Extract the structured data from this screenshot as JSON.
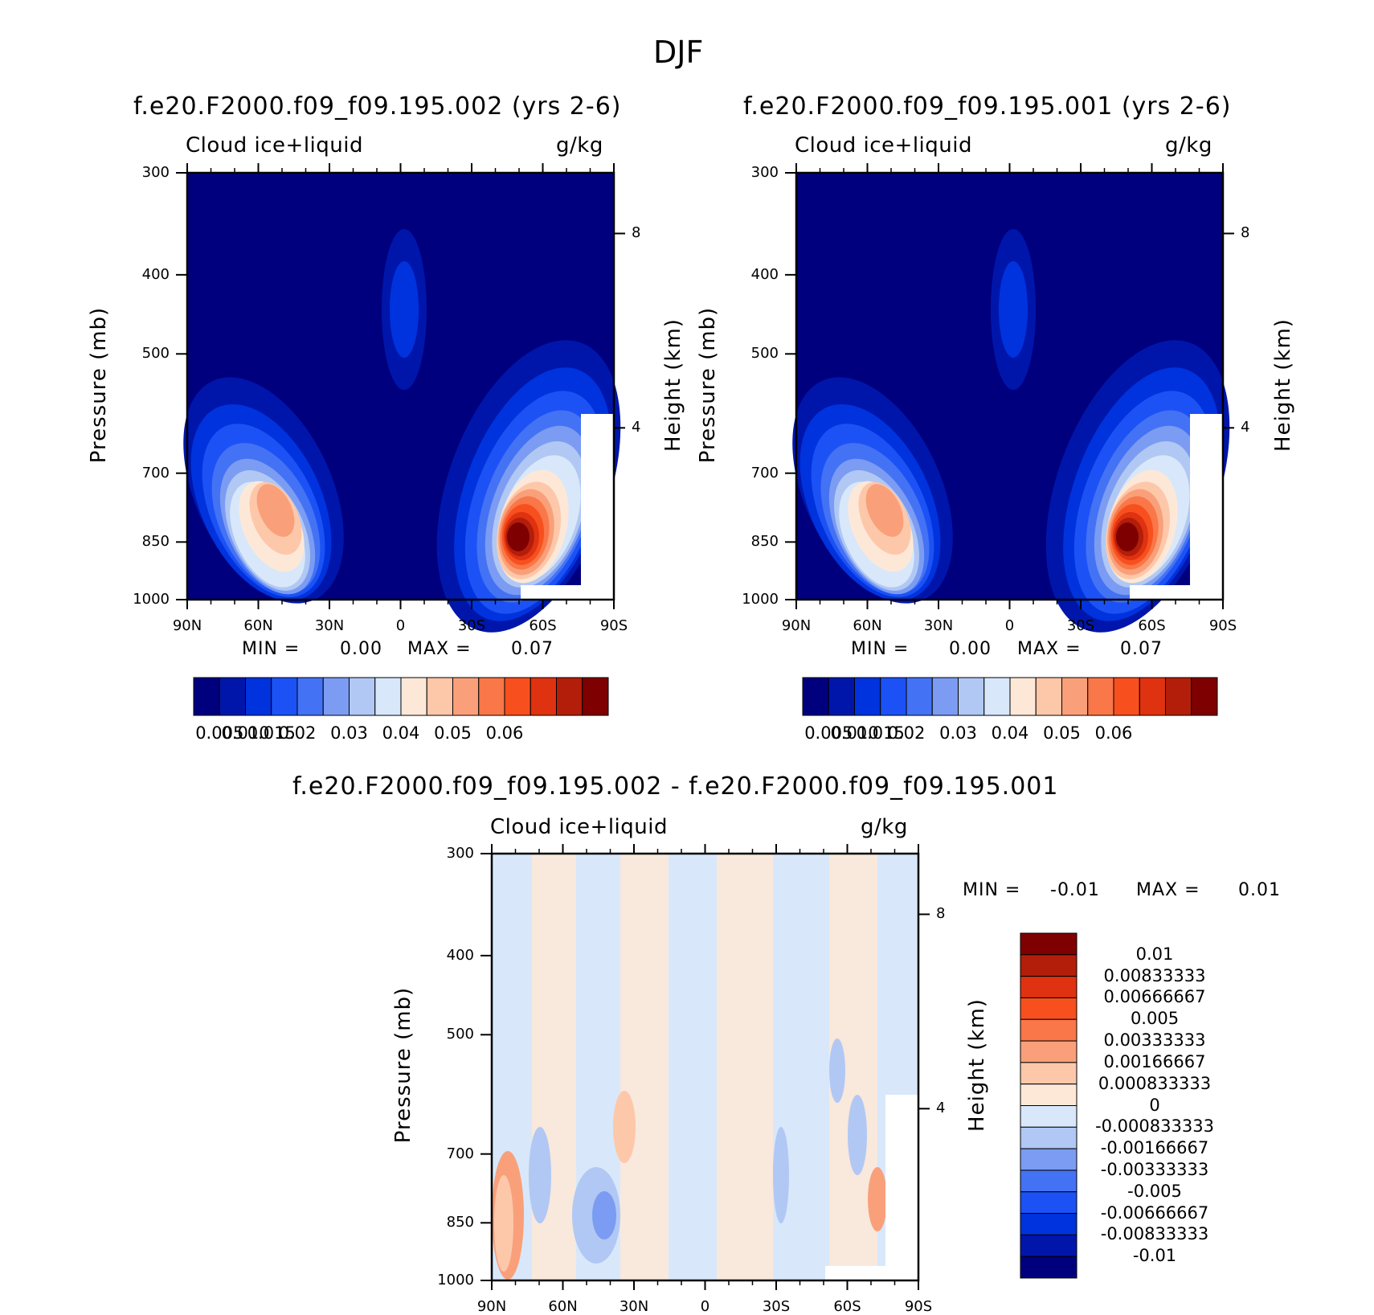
{
  "figure": {
    "title": "DJF"
  },
  "panels": [
    {
      "id": "p1",
      "title": "f.e20.F2000.f09_f09.195.002 (yrs 2-6)",
      "variable": "Cloud ice+liquid",
      "units": "g/kg",
      "ylabel": "Pressure (mb)",
      "ylabel_right": "Height (km)",
      "stats": {
        "min_label": "MIN =",
        "min": "0.00",
        "max_label": "MAX =",
        "max": "0.07"
      }
    },
    {
      "id": "p2",
      "title": "f.e20.F2000.f09_f09.195.001 (yrs 2-6)",
      "variable": "Cloud ice+liquid",
      "units": "g/kg",
      "ylabel": "Pressure (mb)",
      "ylabel_right": "Height (km)",
      "stats": {
        "min_label": "MIN =",
        "min": "0.00",
        "max_label": "MAX =",
        "max": "0.07"
      }
    },
    {
      "id": "p3",
      "title": "f.e20.F2000.f09_f09.195.002 - f.e20.F2000.f09_f09.195.001",
      "variable": "Cloud ice+liquid",
      "units": "g/kg",
      "ylabel": "Pressure (mb)",
      "ylabel_right": "Height (km)",
      "stats": {
        "min_label": "MIN =",
        "min": "-0.01",
        "max_label": "MAX =",
        "max": "0.01"
      }
    }
  ],
  "chart_data": [
    {
      "type": "heatmap",
      "x_ticks": [
        "90N",
        "60N",
        "30N",
        "0",
        "30S",
        "60S",
        "90S"
      ],
      "y_ticks": [
        300,
        400,
        500,
        700,
        850,
        1000
      ],
      "y_right_ticks": [
        8,
        4
      ],
      "colorbar": {
        "orientation": "horizontal",
        "colors": [
          "#00007f",
          "#0016ab",
          "#0033dd",
          "#1c52f5",
          "#4472f5",
          "#7b9cf2",
          "#b1c8f4",
          "#d8e8fa",
          "#fde8d8",
          "#fdc8aa",
          "#f9a07a",
          "#f97748",
          "#f7501e",
          "#df3210",
          "#b31e0a",
          "#7f0000"
        ],
        "labels": [
          "0.005",
          "0.010",
          "0.015",
          "0.02",
          "0.03",
          "0.04",
          "0.05",
          "0.06"
        ]
      }
    },
    {
      "type": "heatmap",
      "x_ticks": [
        "90N",
        "60N",
        "30N",
        "0",
        "30S",
        "60S",
        "90S"
      ],
      "y_ticks": [
        300,
        400,
        500,
        700,
        850,
        1000
      ],
      "y_right_ticks": [
        8,
        4
      ],
      "colorbar": {
        "orientation": "horizontal",
        "colors": [
          "#00007f",
          "#0016ab",
          "#0033dd",
          "#1c52f5",
          "#4472f5",
          "#7b9cf2",
          "#b1c8f4",
          "#d8e8fa",
          "#fde8d8",
          "#fdc8aa",
          "#f9a07a",
          "#f97748",
          "#f7501e",
          "#df3210",
          "#b31e0a",
          "#7f0000"
        ],
        "labels": [
          "0.005",
          "0.010",
          "0.015",
          "0.02",
          "0.03",
          "0.04",
          "0.05",
          "0.06"
        ]
      }
    },
    {
      "type": "heatmap",
      "x_ticks": [
        "90N",
        "60N",
        "30N",
        "0",
        "30S",
        "60S",
        "90S"
      ],
      "y_ticks": [
        300,
        400,
        500,
        700,
        850,
        1000
      ],
      "y_right_ticks": [
        8,
        4
      ],
      "colorbar": {
        "orientation": "vertical",
        "colors": [
          "#7f0000",
          "#b31e0a",
          "#df3210",
          "#f7501e",
          "#f97748",
          "#f9a07a",
          "#fdc8aa",
          "#fde8d8",
          "#d8e8fa",
          "#b1c8f4",
          "#7b9cf2",
          "#4472f5",
          "#1c52f5",
          "#0033dd",
          "#0016ab",
          "#00007f"
        ],
        "labels": [
          "0.01",
          "0.00833333",
          "0.00666667",
          "0.005",
          "0.00333333",
          "0.00166667",
          "0.000833333",
          "0",
          "-0.000833333",
          "-0.00166667",
          "-0.00333333",
          "-0.005",
          "-0.00666667",
          "-0.00833333",
          "-0.01"
        ]
      }
    }
  ]
}
